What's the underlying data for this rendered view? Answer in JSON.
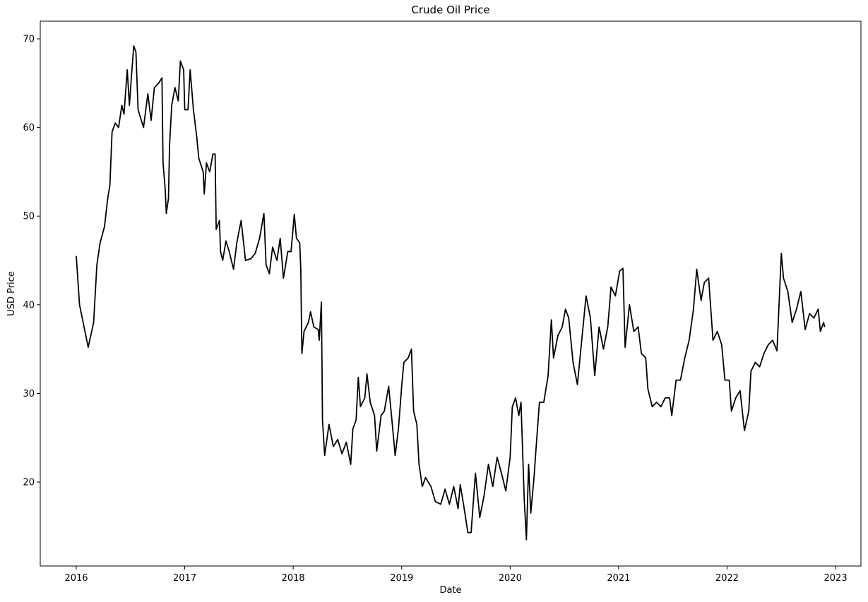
{
  "chart_data": {
    "type": "line",
    "title": "Crude Oil Price",
    "x_label": "Date",
    "y_label": "USD Price",
    "xlim": [
      2015.668,
      2023.234
    ],
    "ylim": [
      10.53,
      71.99
    ],
    "xticks": [
      2016,
      2017,
      2018,
      2019,
      2020,
      2021,
      2022,
      2023
    ],
    "yticks": [
      20,
      30,
      40,
      50,
      60,
      70
    ],
    "series": [
      {
        "color": "#000000",
        "x": [
          2016.0,
          2016.03,
          2016.11,
          2016.16,
          2016.19,
          2016.22,
          2016.26,
          2016.29,
          2016.31,
          2016.33,
          2016.36,
          2016.39,
          2016.42,
          2016.44,
          2016.47,
          2016.49,
          2016.51,
          2016.53,
          2016.55,
          2016.57,
          2016.62,
          2016.66,
          2016.69,
          2016.72,
          2016.76,
          2016.79,
          2016.8,
          2016.82,
          2016.83,
          2016.85,
          2016.86,
          2016.88,
          2016.91,
          2016.94,
          2016.96,
          2016.99,
          2017.0,
          2017.03,
          2017.05,
          2017.08,
          2017.11,
          2017.13,
          2017.17,
          2017.18,
          2017.2,
          2017.23,
          2017.26,
          2017.28,
          2017.29,
          2017.32,
          2017.33,
          2017.35,
          2017.38,
          2017.41,
          2017.45,
          2017.48,
          2017.52,
          2017.56,
          2017.61,
          2017.65,
          2017.69,
          2017.73,
          2017.75,
          2017.78,
          2017.81,
          2017.85,
          2017.88,
          2017.91,
          2017.95,
          2017.98,
          2018.01,
          2018.03,
          2018.06,
          2018.07,
          2018.08,
          2018.1,
          2018.14,
          2018.16,
          2018.19,
          2018.23,
          2018.24,
          2018.26,
          2018.27,
          2018.29,
          2018.33,
          2018.37,
          2018.41,
          2018.45,
          2018.49,
          2018.53,
          2018.55,
          2018.58,
          2018.6,
          2018.62,
          2018.66,
          2018.68,
          2018.71,
          2018.75,
          2018.77,
          2018.81,
          2018.84,
          2018.88,
          2018.91,
          2018.94,
          2018.97,
          2019.0,
          2019.02,
          2019.06,
          2019.09,
          2019.11,
          2019.14,
          2019.16,
          2019.19,
          2019.22,
          2019.27,
          2019.31,
          2019.36,
          2019.4,
          2019.44,
          2019.48,
          2019.52,
          2019.54,
          2019.57,
          2019.61,
          2019.64,
          2019.68,
          2019.72,
          2019.76,
          2019.8,
          2019.84,
          2019.88,
          2019.92,
          2019.96,
          2020.0,
          2020.02,
          2020.05,
          2020.08,
          2020.1,
          2020.13,
          2020.15,
          2020.17,
          2020.19,
          2020.22,
          2020.24,
          2020.27,
          2020.31,
          2020.35,
          2020.38,
          2020.4,
          2020.44,
          2020.48,
          2020.51,
          2020.54,
          2020.58,
          2020.62,
          2020.66,
          2020.7,
          2020.74,
          2020.78,
          2020.82,
          2020.86,
          2020.9,
          2020.93,
          2020.97,
          2021.01,
          2021.04,
          2021.06,
          2021.1,
          2021.14,
          2021.18,
          2021.21,
          2021.25,
          2021.27,
          2021.31,
          2021.35,
          2021.39,
          2021.43,
          2021.47,
          2021.49,
          2021.53,
          2021.57,
          2021.61,
          2021.65,
          2021.69,
          2021.72,
          2021.76,
          2021.79,
          2021.83,
          2021.87,
          2021.91,
          2021.95,
          2021.98,
          2022.02,
          2022.04,
          2022.08,
          2022.12,
          2022.16,
          2022.2,
          2022.22,
          2022.26,
          2022.3,
          2022.34,
          2022.38,
          2022.42,
          2022.46,
          2022.5,
          2022.52,
          2022.56,
          2022.6,
          2022.64,
          2022.68,
          2022.72,
          2022.76,
          2022.8,
          2022.84,
          2022.86,
          2022.89,
          2022.9
        ],
        "values": [
          45.5,
          40,
          35.2,
          38,
          44.5,
          47,
          48.8,
          52,
          53.5,
          59.5,
          60.5,
          60,
          62.5,
          61.5,
          66.5,
          62.5,
          66,
          69.2,
          68.5,
          62,
          60,
          63.8,
          60.8,
          64.5,
          65,
          65.6,
          56,
          53,
          50.3,
          52,
          58,
          62.5,
          64.5,
          63,
          67.5,
          66.5,
          62,
          62,
          66.5,
          62,
          59,
          56.5,
          55,
          52.5,
          56,
          55,
          57,
          57,
          48.5,
          49.5,
          46,
          45,
          47.2,
          46,
          44,
          47,
          49.5,
          45,
          45.2,
          45.8,
          47.5,
          50.3,
          44.5,
          43.5,
          46.5,
          45,
          47.5,
          43,
          46,
          46,
          50.2,
          47.5,
          47,
          44,
          34.5,
          37,
          38,
          39.2,
          37.5,
          37.2,
          36,
          40.3,
          27,
          23,
          26.5,
          24,
          24.8,
          23.2,
          24.5,
          22,
          26,
          27,
          31.8,
          28.5,
          29.5,
          32.2,
          29,
          27.5,
          23.5,
          27.5,
          28,
          30.8,
          27,
          23,
          26,
          30.8,
          33.5,
          34,
          35,
          28,
          26.5,
          22,
          19.5,
          20.5,
          19.5,
          17.8,
          17.5,
          19.2,
          17.5,
          19.5,
          17,
          19.7,
          17.5,
          14.3,
          14.3,
          21,
          16,
          18.5,
          22,
          19.5,
          22.8,
          21,
          19,
          22.8,
          28.5,
          29.5,
          27.5,
          29,
          18,
          13.5,
          22,
          16.5,
          20.5,
          24,
          29,
          29,
          32,
          38.3,
          34,
          36.5,
          37.5,
          39.5,
          38.5,
          33.5,
          31,
          36,
          41,
          38.5,
          32,
          37.5,
          35,
          37.5,
          42,
          41,
          43.8,
          44.1,
          35.2,
          40,
          37,
          37.5,
          34.5,
          34,
          30.5,
          28.5,
          29,
          28.5,
          29.5,
          29.5,
          27.5,
          31.5,
          31.5,
          34,
          36,
          39.5,
          44,
          40.5,
          42.5,
          43,
          36,
          37,
          35.5,
          31.5,
          31.5,
          28,
          29.5,
          30.3,
          25.8,
          28,
          32.5,
          33.5,
          33,
          34.5,
          35.5,
          36,
          34.8,
          45.8,
          43,
          41.5,
          38,
          39.5,
          41.5,
          37.2,
          39,
          38.5,
          39.5,
          37,
          38,
          37.5
        ]
      }
    ]
  }
}
